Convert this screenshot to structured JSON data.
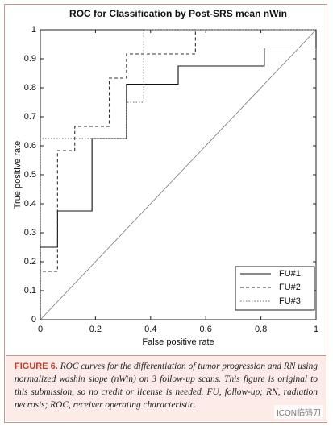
{
  "chart_data": {
    "type": "line",
    "title": "ROC for Classification by Post-SRS mean nWin",
    "x_label": "False positive rate",
    "y_label": "True positive rate",
    "xlim": [
      0,
      1
    ],
    "ylim": [
      0,
      1
    ],
    "xticks": [
      0,
      0.2,
      0.4,
      0.6,
      0.8,
      1
    ],
    "yticks": [
      0,
      0.1,
      0.2,
      0.3,
      0.4,
      0.5,
      0.6,
      0.7,
      0.8,
      0.9,
      1
    ],
    "legend": "lower right",
    "series": [
      {
        "name": "FU#1",
        "color": "#111111",
        "style": "solid",
        "x": [
          0,
          0,
          0.0625,
          0.0625,
          0.1875,
          0.1875,
          0.3125,
          0.3125,
          0.5,
          0.5,
          0.8125,
          0.8125,
          1,
          1
        ],
        "values": [
          0,
          0.25,
          0.25,
          0.375,
          0.375,
          0.625,
          0.625,
          0.8125,
          0.8125,
          0.875,
          0.875,
          0.9375,
          0.9375,
          1
        ]
      },
      {
        "name": "FU#2",
        "color": "#333333",
        "style": "dashed",
        "x": [
          0,
          0,
          0.0625,
          0.0625,
          0.125,
          0.125,
          0.25,
          0.25,
          0.3125,
          0.3125,
          0.5625,
          0.5625,
          1
        ],
        "values": [
          0,
          0.1667,
          0.1667,
          0.5833,
          0.5833,
          0.6667,
          0.6667,
          0.8333,
          0.8333,
          0.9167,
          0.9167,
          1,
          1
        ]
      },
      {
        "name": "FU#3",
        "color": "#666666",
        "style": "dotted",
        "x": [
          0,
          0,
          0.3125,
          0.3125,
          0.375,
          0.375,
          1
        ],
        "values": [
          0,
          0.625,
          0.625,
          0.75,
          0.75,
          1,
          1
        ]
      }
    ]
  },
  "caption": {
    "label": "FIGURE 6.",
    "text": "ROC curves for the differentiation of tumor progression and RN using normalized washin slope (nWin) on 3 follow-up scans. This figure is original to this submission, so no credit or license is needed. FU, follow-up; RN, radiation necrosis; ROC, receiver operating characteristic."
  },
  "watermark": "ICON临码刀"
}
